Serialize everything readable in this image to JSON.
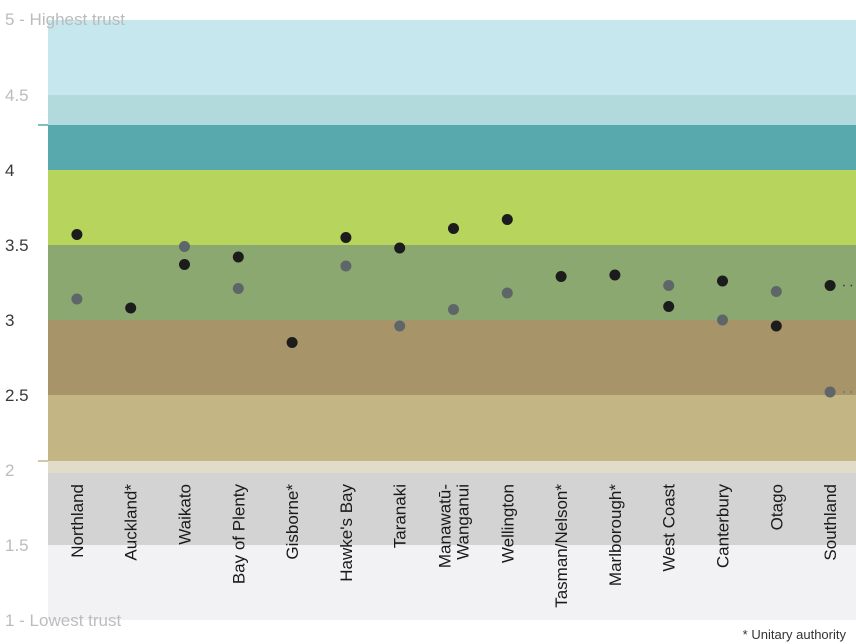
{
  "chart_data": {
    "type": "scatter",
    "ylim": [
      1,
      5
    ],
    "yticks": [
      "1 - Lowest trust",
      "1.5",
      "2",
      "2.5",
      "3",
      "3.5",
      "4",
      "4.5",
      "5 - Highest trust"
    ],
    "categories": [
      "Northland",
      "Auckland*",
      "Waikato",
      "Bay of Plenty",
      "Gisborne*",
      "Hawke's Bay",
      "Taranaki",
      "Manawatū-\nWanganui",
      "Wellington",
      "Tasman/Nelson*",
      "Marlborough*",
      "West Coast",
      "Canterbury",
      "Otago",
      "Southland"
    ],
    "series": [
      {
        "values": [
          3.57,
          3.08,
          3.37,
          3.42,
          2.85,
          3.55,
          3.48,
          3.61,
          3.67,
          3.29,
          3.3,
          3.09,
          3.26,
          2.96,
          3.23
        ]
      },
      {
        "values": [
          3.14,
          null,
          3.49,
          3.21,
          null,
          3.36,
          2.96,
          3.07,
          3.18,
          null,
          null,
          3.23,
          3.0,
          3.19,
          2.52
        ]
      }
    ],
    "bands": [
      {
        "from": 4.5,
        "to": 5.0,
        "color": "#c5e7ed"
      },
      {
        "from": 4.3,
        "to": 4.5,
        "color": "#b2d9dc"
      },
      {
        "from": 4.0,
        "to": 4.3,
        "color": "#57a9ae"
      },
      {
        "from": 3.5,
        "to": 4.0,
        "color": "#b7d45c"
      },
      {
        "from": 3.0,
        "to": 3.5,
        "color": "#8aa86f"
      },
      {
        "from": 2.5,
        "to": 3.0,
        "color": "#a89469"
      },
      {
        "from": 2.06,
        "to": 2.5,
        "color": "#c4b585"
      },
      {
        "from": 1.98,
        "to": 2.06,
        "color": "#e0dcc8"
      },
      {
        "from": 1.5,
        "to": 1.98,
        "color": "#d3d3d4"
      },
      {
        "from": 1.0,
        "to": 1.5,
        "color": "#f2f2f4"
      }
    ],
    "colors": {
      "series0": "#1c1c1c",
      "series1": "#5f6669",
      "tick": "#bcbcbc",
      "tick_dark": "#3a3a3a"
    },
    "footnote": "* Unitary authority"
  }
}
